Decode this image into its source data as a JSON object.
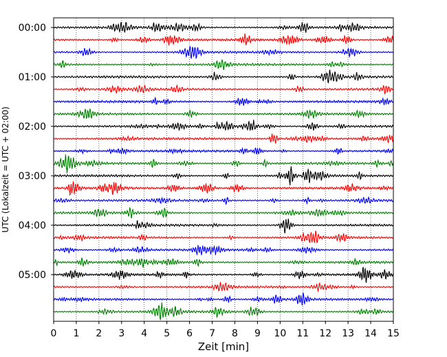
{
  "chart_data": {
    "type": "line",
    "title": "",
    "xlabel": "Zeit  [min]",
    "ylabel": "UTC (Lokalzeit = UTC + 02:00)",
    "xlim": [
      0,
      15
    ],
    "x_ticks": [
      "0",
      "1",
      "2",
      "3",
      "4",
      "5",
      "6",
      "7",
      "8",
      "9",
      "10",
      "11",
      "12",
      "13",
      "14",
      "15"
    ],
    "y_tick_labels": [
      "00:00",
      "01:00",
      "02:00",
      "03:00",
      "04:00",
      "05:00"
    ],
    "traces_per_hour": 4,
    "trace_minutes": 15,
    "trace_count": 24,
    "trace_colors": [
      "#000000",
      "#ff0000",
      "#0000ff",
      "#008000"
    ],
    "grid": "vertical dotted lines at each minute"
  }
}
